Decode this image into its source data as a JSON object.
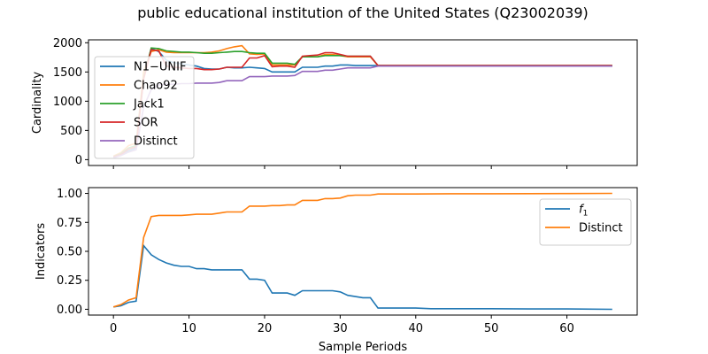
{
  "chart_data": [
    {
      "type": "line",
      "title": "public educational institution of the United States (Q23002039)",
      "xlabel": "",
      "ylabel": "Cardinality",
      "xlim": [
        -3.3,
        69.3
      ],
      "ylim": [
        -100,
        2050
      ],
      "xticks": [
        0,
        10,
        20,
        30,
        40,
        50,
        60
      ],
      "yticks": [
        0,
        500,
        1000,
        1500,
        2000
      ],
      "ytick_labels": [
        "0",
        "500",
        "1000",
        "1500",
        "2000"
      ],
      "legend_position": "upper-left",
      "series": [
        {
          "name": "N1−UNIF",
          "color": "#1f77b4",
          "x": [
            0,
            1,
            2,
            3,
            4,
            5,
            6,
            7,
            8,
            9,
            10,
            11,
            12,
            13,
            14,
            15,
            16,
            17,
            18,
            19,
            20,
            21,
            22,
            23,
            24,
            25,
            26,
            27,
            28,
            29,
            30,
            31,
            32,
            33,
            34,
            35,
            40,
            45,
            50,
            55,
            60,
            66
          ],
          "y": [
            40,
            80,
            150,
            200,
            1420,
            1900,
            1850,
            1700,
            1660,
            1640,
            1620,
            1600,
            1560,
            1550,
            1550,
            1580,
            1570,
            1570,
            1580,
            1570,
            1560,
            1500,
            1500,
            1500,
            1500,
            1580,
            1580,
            1580,
            1600,
            1600,
            1620,
            1620,
            1610,
            1610,
            1610,
            1610,
            1600,
            1605,
            1605,
            1600,
            1600,
            1600
          ]
        },
        {
          "name": "Chao92",
          "color": "#ff7f0e",
          "x": [
            0,
            1,
            2,
            3,
            4,
            5,
            6,
            7,
            8,
            9,
            10,
            11,
            12,
            13,
            14,
            15,
            16,
            17,
            18,
            19,
            20,
            21,
            22,
            23,
            24,
            25,
            26,
            27,
            28,
            29,
            30,
            31,
            32,
            33,
            34,
            35,
            40,
            45,
            50,
            55,
            60,
            66
          ],
          "y": [
            60,
            120,
            240,
            280,
            1500,
            1850,
            1880,
            1840,
            1830,
            1830,
            1830,
            1830,
            1830,
            1840,
            1860,
            1900,
            1930,
            1950,
            1810,
            1800,
            1810,
            1620,
            1620,
            1620,
            1620,
            1760,
            1760,
            1760,
            1800,
            1800,
            1780,
            1760,
            1760,
            1760,
            1760,
            1610,
            1610,
            1610,
            1610,
            1610,
            1610,
            1610
          ]
        },
        {
          "name": "Jack1",
          "color": "#2ca02c",
          "x": [
            0,
            1,
            2,
            3,
            4,
            5,
            6,
            7,
            8,
            9,
            10,
            11,
            12,
            13,
            14,
            15,
            16,
            17,
            18,
            19,
            20,
            21,
            22,
            23,
            24,
            25,
            26,
            27,
            28,
            29,
            30,
            31,
            32,
            33,
            34,
            35,
            40,
            45,
            50,
            55,
            60,
            66
          ],
          "y": [
            50,
            100,
            200,
            240,
            1400,
            1910,
            1900,
            1860,
            1850,
            1840,
            1840,
            1830,
            1820,
            1820,
            1830,
            1840,
            1850,
            1850,
            1830,
            1820,
            1820,
            1650,
            1650,
            1650,
            1630,
            1760,
            1760,
            1760,
            1780,
            1780,
            1780,
            1770,
            1770,
            1770,
            1770,
            1610,
            1610,
            1610,
            1610,
            1610,
            1610,
            1610
          ]
        },
        {
          "name": "SOR",
          "color": "#d62728",
          "x": [
            0,
            1,
            2,
            3,
            4,
            5,
            6,
            7,
            8,
            9,
            10,
            11,
            12,
            13,
            14,
            15,
            16,
            17,
            18,
            19,
            20,
            21,
            22,
            23,
            24,
            25,
            26,
            27,
            28,
            29,
            30,
            31,
            32,
            33,
            34,
            35,
            40,
            45,
            50,
            55,
            60,
            66
          ],
          "y": [
            45,
            90,
            180,
            220,
            1380,
            1880,
            1860,
            1600,
            1580,
            1570,
            1560,
            1560,
            1540,
            1540,
            1550,
            1580,
            1580,
            1580,
            1740,
            1740,
            1780,
            1590,
            1600,
            1600,
            1580,
            1770,
            1780,
            1790,
            1830,
            1830,
            1800,
            1770,
            1770,
            1770,
            1770,
            1610,
            1610,
            1610,
            1610,
            1610,
            1610,
            1610
          ]
        },
        {
          "name": "Distinct",
          "color": "#9467bd",
          "x": [
            0,
            1,
            2,
            3,
            4,
            5,
            6,
            7,
            8,
            9,
            10,
            11,
            12,
            13,
            14,
            15,
            16,
            17,
            18,
            19,
            20,
            21,
            22,
            23,
            24,
            25,
            26,
            27,
            28,
            29,
            30,
            31,
            32,
            33,
            34,
            35,
            40,
            45,
            50,
            55,
            60,
            66
          ],
          "y": [
            30,
            70,
            130,
            170,
            900,
            1200,
            1280,
            1290,
            1290,
            1300,
            1300,
            1310,
            1310,
            1310,
            1320,
            1350,
            1350,
            1350,
            1420,
            1420,
            1420,
            1430,
            1430,
            1430,
            1440,
            1510,
            1510,
            1510,
            1530,
            1530,
            1550,
            1570,
            1570,
            1570,
            1570,
            1600,
            1600,
            1600,
            1600,
            1600,
            1600,
            1600
          ]
        }
      ]
    },
    {
      "type": "line",
      "xlabel": "Sample Periods",
      "ylabel": "Indicators",
      "xlim": [
        -3.3,
        69.3
      ],
      "ylim": [
        -0.05,
        1.05
      ],
      "xticks": [
        0,
        10,
        20,
        30,
        40,
        50,
        60
      ],
      "xtick_labels": [
        "0",
        "10",
        "20",
        "30",
        "40",
        "50",
        "60"
      ],
      "yticks": [
        0,
        0.25,
        0.5,
        0.75,
        1.0
      ],
      "ytick_labels": [
        "0.00",
        "0.25",
        "0.50",
        "0.75",
        "1.00"
      ],
      "legend_position": "upper-right",
      "series": [
        {
          "name": "f1",
          "color": "#1f77b4",
          "x": [
            0,
            1,
            2,
            3,
            4,
            5,
            6,
            7,
            8,
            9,
            10,
            11,
            12,
            13,
            14,
            15,
            16,
            17,
            18,
            19,
            20,
            21,
            22,
            23,
            24,
            25,
            26,
            27,
            28,
            29,
            30,
            31,
            32,
            33,
            34,
            35,
            40,
            42,
            45,
            50,
            55,
            60,
            66
          ],
          "y": [
            0.02,
            0.03,
            0.06,
            0.07,
            0.55,
            0.47,
            0.43,
            0.4,
            0.38,
            0.37,
            0.37,
            0.35,
            0.35,
            0.34,
            0.34,
            0.34,
            0.34,
            0.34,
            0.26,
            0.26,
            0.25,
            0.14,
            0.14,
            0.14,
            0.12,
            0.16,
            0.16,
            0.16,
            0.16,
            0.16,
            0.15,
            0.12,
            0.11,
            0.1,
            0.1,
            0.01,
            0.01,
            0.005,
            0.005,
            0.005,
            0.003,
            0.003,
            0.0
          ]
        },
        {
          "name": "Distinct",
          "color": "#ff7f0e",
          "x": [
            0,
            1,
            2,
            3,
            4,
            5,
            6,
            7,
            8,
            9,
            10,
            11,
            12,
            13,
            14,
            15,
            16,
            17,
            18,
            19,
            20,
            21,
            22,
            23,
            24,
            25,
            26,
            27,
            28,
            29,
            30,
            31,
            32,
            33,
            34,
            35,
            40,
            45,
            50,
            55,
            60,
            66
          ],
          "y": [
            0.02,
            0.04,
            0.08,
            0.1,
            0.62,
            0.8,
            0.81,
            0.81,
            0.81,
            0.81,
            0.815,
            0.82,
            0.82,
            0.82,
            0.83,
            0.84,
            0.84,
            0.84,
            0.89,
            0.89,
            0.89,
            0.895,
            0.895,
            0.9,
            0.9,
            0.94,
            0.94,
            0.94,
            0.955,
            0.955,
            0.96,
            0.98,
            0.985,
            0.985,
            0.985,
            0.995,
            0.995,
            0.997,
            0.997,
            0.998,
            0.999,
            1.0
          ]
        }
      ]
    }
  ]
}
